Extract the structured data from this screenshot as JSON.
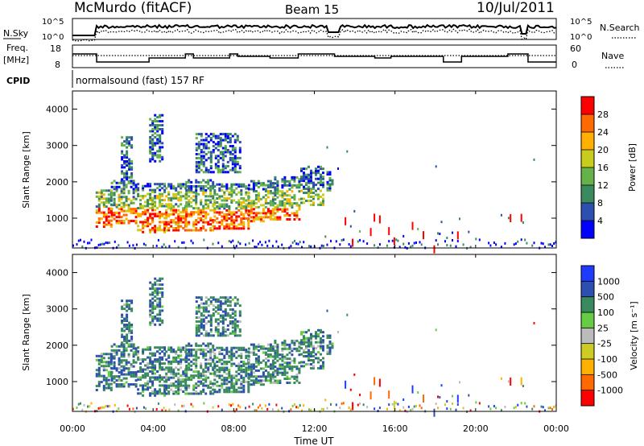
{
  "header": {
    "station": "McMurdo (fitACF)",
    "beam": "Beam 15",
    "date": "10/Jul/2011"
  },
  "sky_panel": {
    "left_label": "N.Sky",
    "right_label": "N.Search",
    "right_label_style": "dotted",
    "left_ticks": [
      "10^5",
      "10^0"
    ],
    "right_ticks": [
      "10^5",
      "10^0"
    ]
  },
  "freq_panel": {
    "left_label_1": "Freq.",
    "left_label_2": "[MHz]",
    "right_label": "Nave",
    "right_label_style": "dotted",
    "left_ticks": [
      "18",
      "8"
    ],
    "right_ticks": [
      "60",
      "0"
    ]
  },
  "cpid_panel": {
    "left_label": "CPID",
    "text": "normalsound (fast) 157 RF"
  },
  "x_axis": {
    "label": "Time UT",
    "ticks": [
      "00:00",
      "04:00",
      "08:00",
      "12:00",
      "16:00",
      "20:00",
      "00:00"
    ]
  },
  "colors": {
    "power": [
      "#0000ff",
      "#2d4fb0",
      "#3a8a5f",
      "#66b24a",
      "#c8cc1a",
      "#ffb000",
      "#ff6a00",
      "#ff0000"
    ],
    "velocity": [
      "#ff0000",
      "#ff6a00",
      "#ffb000",
      "#cccc22",
      "#bbbbbb",
      "#66cc44",
      "#3a8a5f",
      "#2d4fb0",
      "#1e3cff"
    ]
  },
  "chart_data": [
    {
      "type": "heatmap",
      "panel": "power",
      "ylabel": "Slant Range [km]",
      "yticks": [
        "1000",
        "2000",
        "3000",
        "4000"
      ],
      "ylim": [
        180,
        4500
      ],
      "xlim": [
        0,
        24
      ],
      "colorbar_label": "Power [dB]",
      "colorbar_ticks": [
        "4",
        "8",
        "12",
        "16",
        "20",
        "24",
        "28"
      ],
      "colorbar_range": [
        0,
        32
      ]
    },
    {
      "type": "heatmap",
      "panel": "velocity",
      "ylabel": "Slant Range [km]",
      "yticks": [
        "1000",
        "2000",
        "3000",
        "4000"
      ],
      "ylim": [
        180,
        4500
      ],
      "xlim": [
        0,
        24
      ],
      "colorbar_label": "Velocity [m s⁻¹]",
      "colorbar_ticks": [
        "-1000",
        "-500",
        "-100",
        "-25",
        "25",
        "100",
        "500",
        "1000"
      ]
    }
  ]
}
